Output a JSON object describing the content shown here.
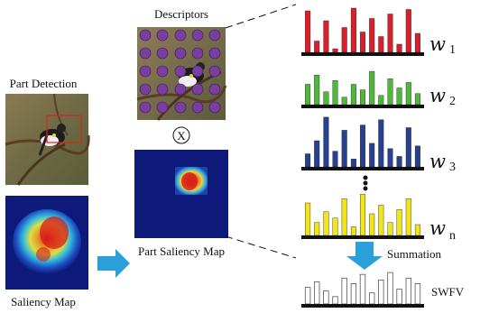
{
  "labels": {
    "part_detection": "Part Detection",
    "saliency_map": "Saliency Map",
    "descriptors": "Descriptors",
    "part_saliency_map": "Part Saliency Map",
    "multiply": "X",
    "summation": "Summation",
    "swfv": "SWFV"
  },
  "weights": [
    {
      "w": "w",
      "sub": "1"
    },
    {
      "w": "w",
      "sub": "2"
    },
    {
      "w": "w",
      "sub": "3"
    },
    {
      "w": "w",
      "sub": "n"
    }
  ],
  "colors": {
    "red": "#d8202a",
    "green": "#4fb83a",
    "blue": "#27408f",
    "yellow": "#f0e41a",
    "arrow": "#2a9fd8",
    "saliency_bg": "#0d1a7a",
    "dot": "#7a3ea0"
  },
  "histograms": {
    "red": [
      0.92,
      0.25,
      0.7,
      0.08,
      0.55,
      0.98,
      0.45,
      0.75,
      0.35,
      0.85,
      0.18,
      0.95,
      0.42
    ],
    "green": [
      0.55,
      0.8,
      0.35,
      0.65,
      0.2,
      0.55,
      0.4,
      0.9,
      0.25,
      0.7,
      0.45,
      0.6,
      0.3
    ],
    "blue": [
      0.25,
      0.5,
      0.95,
      0.3,
      0.7,
      0.15,
      0.8,
      0.45,
      0.9,
      0.35,
      0.2,
      0.75,
      0.4
    ],
    "yellow": [
      0.75,
      0.3,
      0.55,
      0.4,
      0.85,
      0.2,
      0.95,
      0.5,
      0.7,
      0.3,
      0.6,
      0.85,
      0.25
    ],
    "swfv": [
      0.45,
      0.6,
      0.35,
      0.2,
      0.7,
      0.55,
      0.8,
      0.3,
      0.65,
      0.85,
      0.4,
      0.7,
      0.55
    ]
  }
}
